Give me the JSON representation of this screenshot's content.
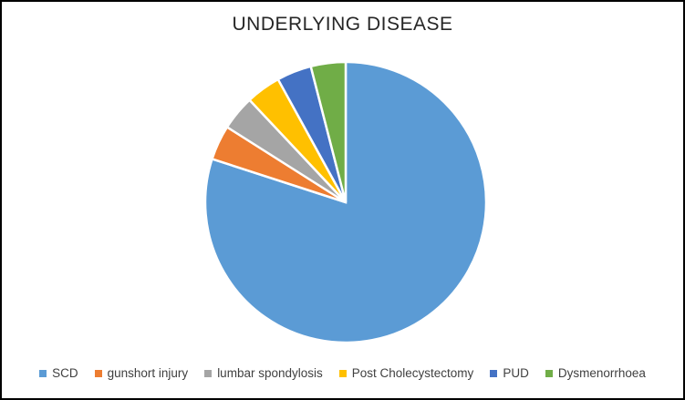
{
  "chart": {
    "title": "UNDERLYING DISEASE"
  },
  "chart_data": {
    "type": "pie",
    "title": "UNDERLYING DISEASE",
    "categories": [
      "SCD",
      "gunshort injury",
      "lumbar spondylosis",
      "Post Cholecystectomy",
      "PUD",
      "Dysmenorrhoea"
    ],
    "values": [
      80,
      4,
      4,
      4,
      4,
      4
    ],
    "unit": "percent_estimated_from_arc_angles",
    "colors": [
      "#5B9BD5",
      "#ED7D31",
      "#A5A5A5",
      "#FFC000",
      "#4472C4",
      "#70AD47"
    ],
    "start_angle_deg": 0,
    "direction": "clockwise",
    "legend_position": "bottom",
    "legend_orientation": "horizontal",
    "slice_border_color": "#FFFFFF",
    "data_labels": "none",
    "background_color": "#FFFFFF",
    "frame_border_color": "#000000"
  }
}
